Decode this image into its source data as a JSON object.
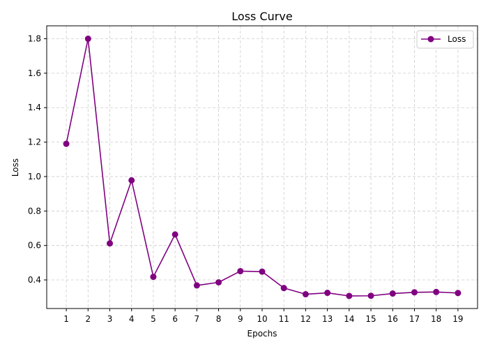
{
  "chart_data": {
    "type": "line",
    "title": "Loss Curve",
    "xlabel": "Epochs",
    "ylabel": "Loss",
    "x": [
      1,
      2,
      3,
      4,
      5,
      6,
      7,
      8,
      9,
      10,
      11,
      12,
      13,
      14,
      15,
      16,
      17,
      18,
      19
    ],
    "xticks": [
      "1",
      "2",
      "3",
      "4",
      "5",
      "6",
      "7",
      "8",
      "9",
      "10",
      "11",
      "12",
      "13",
      "14",
      "15",
      "16",
      "17",
      "18",
      "19"
    ],
    "yticks": [
      "0.4",
      "0.6",
      "0.8",
      "1.0",
      "1.2",
      "1.4",
      "1.6",
      "1.8"
    ],
    "ylim": [
      0.234,
      1.875
    ],
    "xlim": [
      0.1,
      19.9
    ],
    "grid": true,
    "legend_position": "top-right",
    "series": [
      {
        "name": "Loss",
        "color": "#800080",
        "marker": "circle",
        "values": [
          1.19,
          1.8,
          0.612,
          0.978,
          0.418,
          0.664,
          0.368,
          0.386,
          0.451,
          0.448,
          0.353,
          0.317,
          0.325,
          0.307,
          0.308,
          0.321,
          0.328,
          0.33,
          0.324
        ]
      }
    ]
  }
}
